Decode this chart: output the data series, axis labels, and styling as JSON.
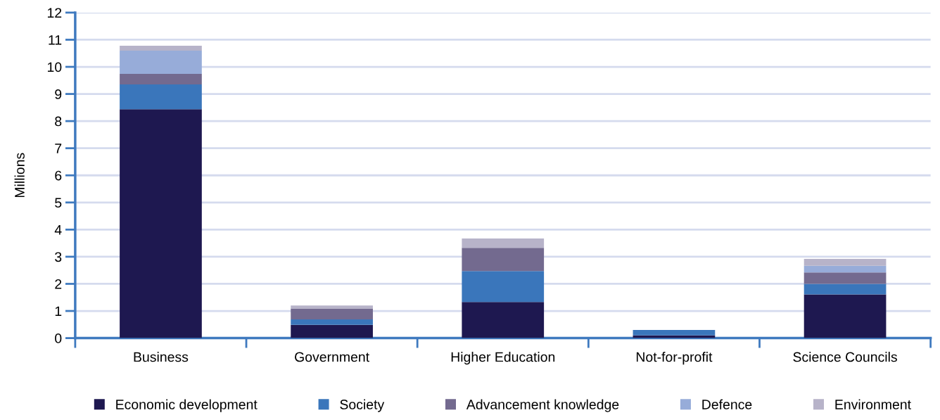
{
  "chart_data": {
    "type": "bar",
    "stacked": true,
    "ylabel": "Millions",
    "categories": [
      "Business",
      "Government",
      "Higher Education",
      "Not-for-profit",
      "Science Councils"
    ],
    "series": [
      {
        "name": "Economic development",
        "color": "#1e1850",
        "values": [
          8.44,
          0.49,
          1.33,
          0.1,
          1.61
        ]
      },
      {
        "name": "Society",
        "color": "#3a76bb",
        "values": [
          0.91,
          0.2,
          1.14,
          0.2,
          0.39
        ]
      },
      {
        "name": "Advancement knowledge",
        "color": "#736a8f",
        "values": [
          0.39,
          0.4,
          0.86,
          0,
          0.42
        ]
      },
      {
        "name": "Defence",
        "color": "#97acd9",
        "values": [
          0.86,
          0,
          0,
          0,
          0.25
        ]
      },
      {
        "name": "Environment",
        "color": "#b7b3c9",
        "values": [
          0.18,
          0.11,
          0.34,
          0,
          0.25
        ]
      }
    ],
    "ylim": [
      0,
      12
    ],
    "yticks": [
      0,
      1,
      2,
      3,
      4,
      5,
      6,
      7,
      8,
      9,
      10,
      11,
      12
    ],
    "grid": "y",
    "legend": "bottom"
  }
}
